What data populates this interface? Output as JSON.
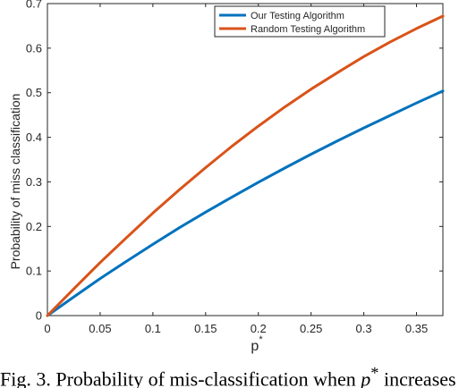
{
  "caption": {
    "prefix": "Fig. 3.  Probability of mis-classification when ",
    "variable": "p",
    "superscript": "*",
    "suffix": " increases"
  },
  "chart_data": {
    "type": "line",
    "title": "",
    "xlabel": "p",
    "xlabel_superscript": "*",
    "ylabel": "Probability of miss classification",
    "xlim": [
      0,
      0.375
    ],
    "ylim": [
      0,
      0.7
    ],
    "xticks": [
      0,
      0.05,
      0.1,
      0.15,
      0.2,
      0.25,
      0.3,
      0.35
    ],
    "xtick_labels": [
      "0",
      "0.05",
      "0.1",
      "0.15",
      "0.2",
      "0.25",
      "0.3",
      "0.35"
    ],
    "yticks": [
      0,
      0.1,
      0.2,
      0.3,
      0.4,
      0.5,
      0.6,
      0.7
    ],
    "ytick_labels": [
      "0",
      "0.1",
      "0.2",
      "0.3",
      "0.4",
      "0.5",
      "0.6",
      "0.7"
    ],
    "grid": false,
    "legend_position": "top-right",
    "x": [
      0,
      0.025,
      0.05,
      0.075,
      0.1,
      0.125,
      0.15,
      0.175,
      0.2,
      0.225,
      0.25,
      0.275,
      0.3,
      0.325,
      0.35,
      0.375
    ],
    "series": [
      {
        "name": "Our Testing Algorithm",
        "color": "#0072BD",
        "values": [
          0,
          0.042,
          0.083,
          0.122,
          0.16,
          0.197,
          0.232,
          0.266,
          0.299,
          0.331,
          0.362,
          0.392,
          0.421,
          0.449,
          0.477,
          0.504
        ]
      },
      {
        "name": "Random Testing Algorithm",
        "color": "#D95319",
        "values": [
          0,
          0.06,
          0.119,
          0.175,
          0.23,
          0.282,
          0.332,
          0.38,
          0.425,
          0.468,
          0.508,
          0.545,
          0.581,
          0.614,
          0.644,
          0.672
        ]
      }
    ]
  }
}
